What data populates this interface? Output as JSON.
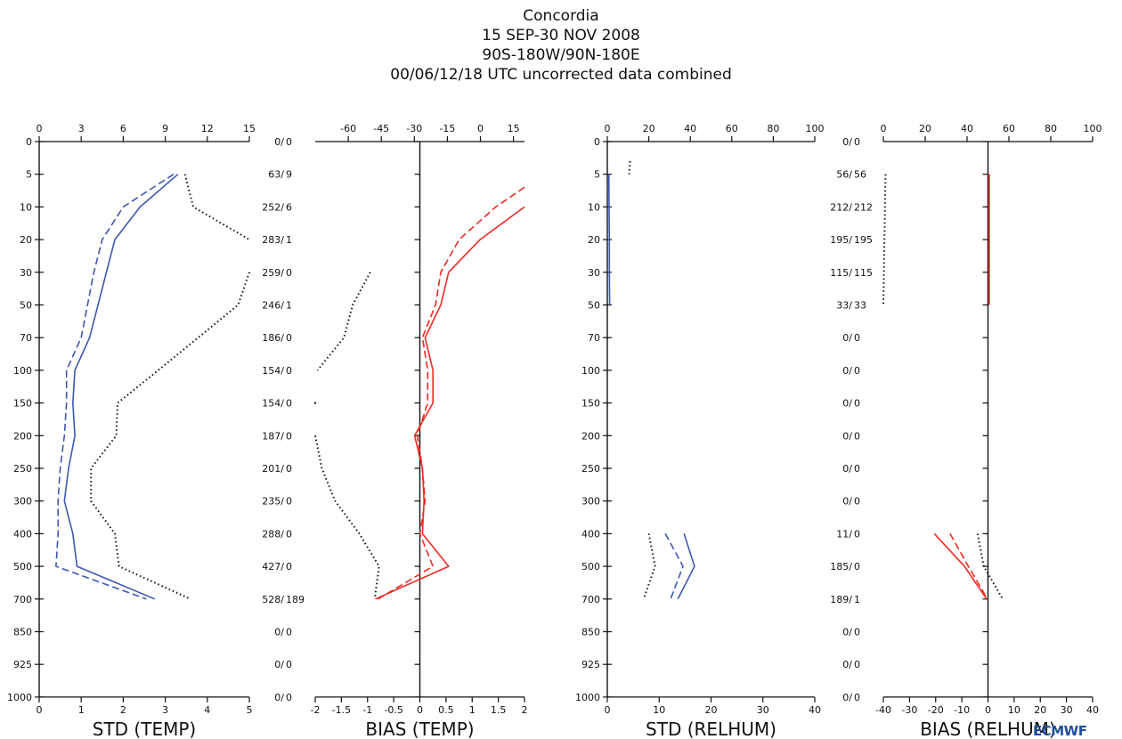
{
  "header": {
    "line1": "Concordia",
    "line2": "15 SEP-30 NOV 2008",
    "line3": "90S-180W/90N-180E",
    "line4": "00/06/12/18 UTC uncorrected data combined"
  },
  "logo": "ECMWF",
  "colors": {
    "blue": "#3f57b0",
    "red": "#ee2b24",
    "black": "#111111"
  },
  "chart_data": {
    "type": "line",
    "levels": [
      "0",
      "5",
      "10",
      "20",
      "30",
      "50",
      "70",
      "100",
      "150",
      "200",
      "250",
      "300",
      "400",
      "500",
      "700",
      "850",
      "925",
      "1000"
    ],
    "panels": [
      {
        "id": "std_temp",
        "xlabel": "STD (TEMP)",
        "bottom_ticks": [
          "0",
          "1",
          "2",
          "3",
          "4",
          "5"
        ],
        "bottom_range": [
          0,
          5
        ],
        "top_ticks": [
          "0",
          "3",
          "6",
          "9",
          "12",
          "15"
        ],
        "top_range": [
          0,
          15
        ],
        "series": [
          {
            "style": "solid",
            "color": "blue",
            "scale": "bottom",
            "points": [
              [
                3.3,
                "5"
              ],
              [
                2.4,
                "10"
              ],
              [
                1.8,
                "20"
              ],
              [
                1.6,
                "30"
              ],
              [
                1.2,
                "70"
              ],
              [
                0.85,
                "100"
              ],
              [
                0.8,
                "150"
              ],
              [
                0.85,
                "200"
              ],
              [
                0.7,
                "250"
              ],
              [
                0.6,
                "300"
              ],
              [
                0.8,
                "400"
              ],
              [
                0.9,
                "500"
              ],
              [
                2.75,
                "700"
              ]
            ]
          },
          {
            "style": "dashed",
            "color": "blue",
            "scale": "bottom",
            "points": [
              [
                3.2,
                "5"
              ],
              [
                2.0,
                "10"
              ],
              [
                1.5,
                "20"
              ],
              [
                1.3,
                "30"
              ],
              [
                1.0,
                "70"
              ],
              [
                0.65,
                "100"
              ],
              [
                0.65,
                "150"
              ],
              [
                0.6,
                "200"
              ],
              [
                0.5,
                "250"
              ],
              [
                0.45,
                "300"
              ],
              [
                0.45,
                "400"
              ],
              [
                0.4,
                "500"
              ],
              [
                2.55,
                "700"
              ]
            ]
          },
          {
            "style": "dotted",
            "color": "black",
            "scale": "top",
            "segments": [
              [
                [
                  10.4,
                  "5"
                ],
                [
                  11.0,
                  "10"
                ],
                [
                  15.0,
                  "20"
                ]
              ],
              [
                [
                  15.0,
                  "30"
                ],
                [
                  14.2,
                  "50"
                ],
                [
                  8.5,
                  "100"
                ],
                [
                  5.6,
                  "150"
                ],
                [
                  5.5,
                  "200"
                ],
                [
                  3.7,
                  "250"
                ],
                [
                  3.7,
                  "300"
                ],
                [
                  5.4,
                  "400"
                ],
                [
                  5.7,
                  "500"
                ],
                [
                  10.8,
                  "700"
                ]
              ]
            ]
          }
        ]
      },
      {
        "id": "bias_temp",
        "xlabel": "BIAS (TEMP)",
        "bottom_ticks": [
          "-2",
          "-1.5",
          "-1",
          "-0.5",
          "0",
          "0.5",
          "1",
          "1.5",
          "2"
        ],
        "bottom_range": [
          -2,
          2
        ],
        "top_ticks": [
          "-60",
          "-45",
          "-30",
          "-15",
          "0",
          "15"
        ],
        "top_range": [
          -75,
          20
        ],
        "counts": [
          "0/  0",
          "63/  9",
          "252/  6",
          "283/  1",
          "259/  0",
          "246/  1",
          "186/  0",
          "154/  0",
          "154/  0",
          "187/  0",
          "201/  0",
          "235/  0",
          "288/  0",
          "427/  0",
          "528/  189",
          "0/  0",
          "0/  0",
          "0/  0"
        ],
        "series": [
          {
            "style": "solid",
            "color": "red",
            "scale": "bottom",
            "points": [
              [
                2.0,
                "10"
              ],
              [
                1.15,
                "20"
              ],
              [
                0.55,
                "30"
              ],
              [
                0.4,
                "50"
              ],
              [
                0.1,
                "70"
              ],
              [
                0.25,
                "100"
              ],
              [
                0.25,
                "150"
              ],
              [
                -0.1,
                "200"
              ],
              [
                0.05,
                "250"
              ],
              [
                0.08,
                "300"
              ],
              [
                0.05,
                "400"
              ],
              [
                0.55,
                "500"
              ],
              [
                -0.85,
                "700"
              ]
            ]
          },
          {
            "style": "dashed",
            "color": "red",
            "scale": "bottom",
            "points": [
              [
                2.0,
                "7"
              ],
              [
                1.45,
                "10"
              ],
              [
                0.75,
                "20"
              ],
              [
                0.4,
                "30"
              ],
              [
                0.3,
                "50"
              ],
              [
                0.05,
                "70"
              ],
              [
                0.15,
                "100"
              ],
              [
                0.15,
                "150"
              ],
              [
                -0.05,
                "200"
              ],
              [
                0.05,
                "250"
              ],
              [
                0.1,
                "300"
              ],
              [
                0.0,
                "400"
              ],
              [
                0.25,
                "500"
              ],
              [
                -0.8,
                "700"
              ]
            ]
          },
          {
            "style": "dotted",
            "color": "black",
            "scale": "top",
            "segments": [
              [
                [
                  -50.0,
                  "30"
                ],
                [
                  -58.0,
                  "50"
                ],
                [
                  -62.0,
                  "70"
                ],
                [
                  -74.0,
                  "100"
                ]
              ],
              [
                [
                  -75.0,
                  "150"
                ]
              ],
              [
                [
                  -75.0,
                  "200"
                ],
                [
                  -72.0,
                  "250"
                ],
                [
                  -66.0,
                  "300"
                ],
                [
                  -55.0,
                  "400"
                ],
                [
                  -46.0,
                  "500"
                ],
                [
                  -48.0,
                  "700"
                ]
              ]
            ]
          }
        ]
      },
      {
        "id": "std_relhum",
        "xlabel": "STD (RELHUM)",
        "bottom_ticks": [
          "0",
          "10",
          "20",
          "30",
          "40"
        ],
        "bottom_range": [
          0,
          40
        ],
        "top_ticks": [
          "0",
          "20",
          "40",
          "60",
          "80",
          "100"
        ],
        "top_range": [
          0,
          100
        ],
        "series": [
          {
            "style": "solid",
            "color": "blue",
            "scale": "bottom",
            "points": [
              [
                0.3,
                "5"
              ],
              [
                0.35,
                "10"
              ],
              [
                0.4,
                "20"
              ],
              [
                0.4,
                "30"
              ],
              [
                0.45,
                "50"
              ]
            ]
          },
          {
            "style": "solid",
            "color": "blue",
            "scale": "bottom",
            "points": [
              [
                14.8,
                "400"
              ],
              [
                16.8,
                "500"
              ],
              [
                13.6,
                "700"
              ]
            ]
          },
          {
            "style": "dashed",
            "color": "blue",
            "scale": "bottom",
            "points": [
              [
                11.2,
                "400"
              ],
              [
                14.6,
                "500"
              ],
              [
                12.2,
                "700"
              ]
            ]
          },
          {
            "style": "dotted",
            "color": "black",
            "scale": "top",
            "segments": [
              [
                [
                  11.0,
                  "3"
                ],
                [
                  10.5,
                  "5"
                ]
              ],
              [
                [
                  20.0,
                  "400"
                ],
                [
                  23.0,
                  "500"
                ],
                [
                  17.5,
                  "700"
                ]
              ]
            ]
          }
        ]
      },
      {
        "id": "bias_relhum",
        "xlabel": "BIAS (RELHUM)",
        "bottom_ticks": [
          "-40",
          "-30",
          "-20",
          "-10",
          "0",
          "10",
          "20",
          "30",
          "40"
        ],
        "bottom_range": [
          -40,
          40
        ],
        "top_ticks": [
          "0",
          "20",
          "40",
          "60",
          "80",
          "100"
        ],
        "top_range": [
          0,
          100
        ],
        "counts": [
          "0/  0",
          "56/  56",
          "212/  212",
          "195/  195",
          "115/  115",
          "33/  33",
          "0/  0",
          "0/  0",
          "0/  0",
          "0/  0",
          "0/  0",
          "0/  0",
          "11/  0",
          "185/  0",
          "189/  1",
          "0/  0",
          "0/  0",
          "0/  0"
        ],
        "series": [
          {
            "style": "solid",
            "color": "red",
            "scale": "bottom",
            "points": [
              [
                0.5,
                "5"
              ],
              [
                0.5,
                "50"
              ]
            ]
          },
          {
            "style": "solid",
            "color": "red",
            "scale": "bottom",
            "points": [
              [
                -20.5,
                "400"
              ],
              [
                -9.0,
                "500"
              ],
              [
                -0.5,
                "700"
              ]
            ]
          },
          {
            "style": "dashed",
            "color": "red",
            "scale": "bottom",
            "points": [
              [
                -14.5,
                "400"
              ],
              [
                -7.5,
                "500"
              ],
              [
                -0.2,
                "700"
              ]
            ]
          },
          {
            "style": "dotted",
            "color": "black",
            "scale": "top",
            "segments": [
              [
                [
                  1.0,
                  "5"
                ],
                [
                  0.0,
                  "50"
                ]
              ],
              [
                [
                  45.0,
                  "400"
                ],
                [
                  48.0,
                  "500"
                ],
                [
                  57.0,
                  "700"
                ]
              ]
            ]
          }
        ]
      }
    ]
  }
}
